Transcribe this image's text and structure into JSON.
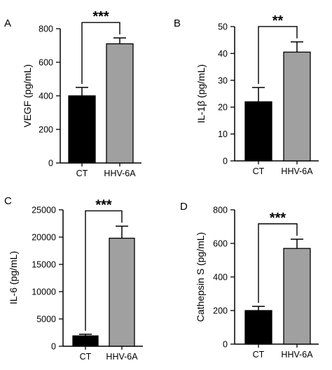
{
  "chart_data": [
    {
      "type": "bar",
      "panel": "A",
      "ylabel": "VEGF (pg/mL)",
      "categories": [
        "CT",
        "HHV-6A"
      ],
      "values": [
        400,
        710
      ],
      "errors": [
        50,
        35
      ],
      "colors": [
        "#000000",
        "#a0a0a0"
      ],
      "ylim": [
        0,
        800
      ],
      "yticks": [
        "0",
        "200",
        "400",
        "600",
        "800"
      ],
      "significance": "***"
    },
    {
      "type": "bar",
      "panel": "B",
      "ylabel": "IL-1β (pg/mL)",
      "categories": [
        "CT",
        "HHV-6A"
      ],
      "values": [
        22,
        40.5
      ],
      "errors": [
        5.3,
        3.8
      ],
      "colors": [
        "#000000",
        "#a0a0a0"
      ],
      "ylim": [
        0,
        50
      ],
      "yticks": [
        "0",
        "10",
        "20",
        "30",
        "40",
        "50"
      ],
      "significance": "**"
    },
    {
      "type": "bar",
      "panel": "C",
      "ylabel": "IL-6 (pg/mL)",
      "categories": [
        "CT",
        "HHV-6A"
      ],
      "values": [
        1900,
        19800
      ],
      "errors": [
        300,
        2200
      ],
      "colors": [
        "#000000",
        "#a0a0a0"
      ],
      "ylim": [
        0,
        25000
      ],
      "yticks": [
        "0",
        "5000",
        "10000",
        "15000",
        "20000",
        "25000"
      ],
      "significance": "***"
    },
    {
      "type": "bar",
      "panel": "D",
      "ylabel": "Cathepsin S (pg/mL)",
      "categories": [
        "CT",
        "HHV-6A"
      ],
      "values": [
        200,
        570
      ],
      "errors": [
        25,
        55
      ],
      "colors": [
        "#000000",
        "#a0a0a0"
      ],
      "ylim": [
        0,
        800
      ],
      "yticks": [
        "0",
        "200",
        "400",
        "600",
        "800"
      ],
      "significance": "***"
    }
  ]
}
